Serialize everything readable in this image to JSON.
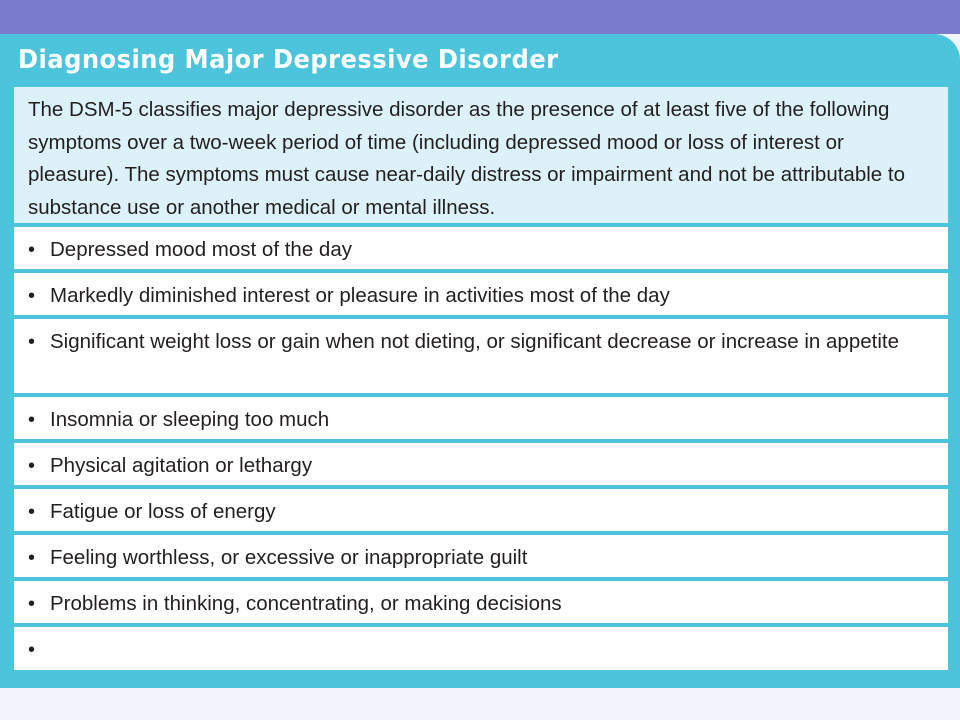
{
  "title": "Diagnosing Major Depressive Disorder",
  "intro": "The DSM-5 classifies major depressive disorder as the presence of at least five of the following symptoms over a two-week period of time (including depressed mood or loss of interest or pleasure). The symptoms must cause near-daily distress or impairment and not be attributable to substance use or another medical or mental illness.",
  "bullet_glyph": "•",
  "symptoms": [
    "Depressed mood most of the day",
    "Markedly diminished interest or pleasure in activities most of the day",
    "Significant weight loss or gain when not dieting, or significant decrease or increase in appetite",
    "Insomnia or sleeping too much",
    "Physical agitation or lethargy",
    "Fatigue or loss of energy",
    "Feeling worthless, or excessive or inappropriate guilt",
    "Problems in thinking, concentrating, or making decisions",
    ""
  ],
  "colors": {
    "top_bar": "#7b7bcc",
    "panel": "#4bc4dc",
    "intro_bg": "#ddf1f8",
    "row_bg": "#ffffff",
    "text": "#231f20"
  }
}
